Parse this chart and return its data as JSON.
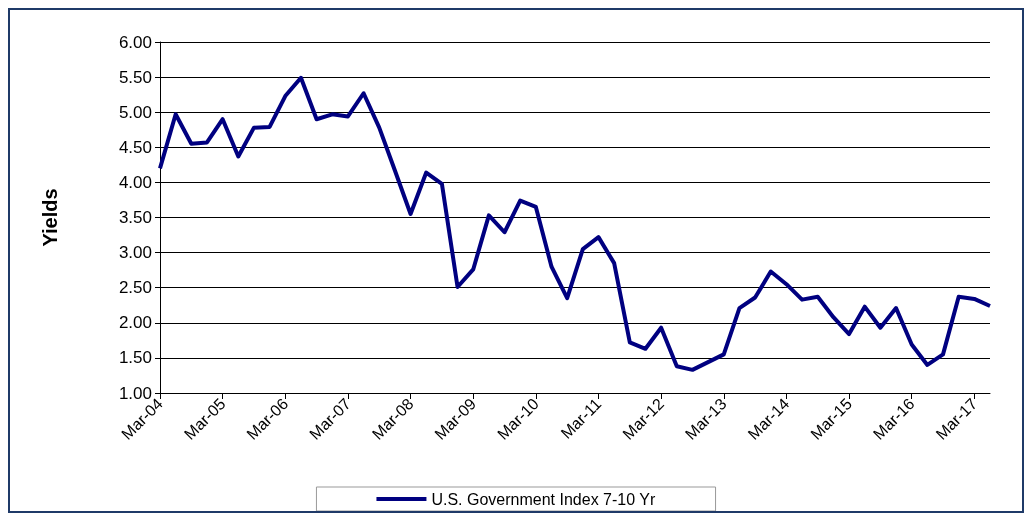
{
  "chart_data": {
    "type": "line",
    "ylabel": "Yields",
    "categories": [
      "Mar-04",
      null,
      null,
      null,
      "Mar-05",
      null,
      null,
      null,
      "Mar-06",
      null,
      null,
      null,
      "Mar-07",
      null,
      null,
      null,
      "Mar-08",
      null,
      null,
      null,
      "Mar-09",
      null,
      null,
      null,
      "Mar-10",
      null,
      null,
      null,
      "Mar-11",
      null,
      null,
      null,
      "Mar-12",
      null,
      null,
      null,
      "Mar-13",
      null,
      null,
      null,
      "Mar-14",
      null,
      null,
      null,
      "Mar-15",
      null,
      null,
      null,
      "Mar-16",
      null,
      null,
      null,
      "Mar-17",
      null
    ],
    "series": [
      {
        "name": "U.S. Government Index 7-10 Yr",
        "color": "#000080",
        "values": [
          4.2,
          4.97,
          4.55,
          4.57,
          4.9,
          4.37,
          4.78,
          4.79,
          5.23,
          5.49,
          4.9,
          4.97,
          4.94,
          5.27,
          4.78,
          4.17,
          3.55,
          4.14,
          3.98,
          2.51,
          2.76,
          3.53,
          3.29,
          3.74,
          3.65,
          2.8,
          2.35,
          3.05,
          3.22,
          2.85,
          1.72,
          1.63,
          1.93,
          1.38,
          1.33,
          1.44,
          1.55,
          2.21,
          2.36,
          2.73,
          2.55,
          2.33,
          2.37,
          2.08,
          1.84,
          2.23,
          1.93,
          2.21,
          1.69,
          1.4,
          1.55,
          2.37,
          2.34,
          2.24
        ]
      }
    ],
    "ylim": [
      1,
      6
    ],
    "yticks": [
      {
        "value": 1,
        "label": "1.00"
      },
      {
        "value": 1.5,
        "label": "1.50"
      },
      {
        "value": 2,
        "label": "2.00"
      },
      {
        "value": 2.5,
        "label": "2.50"
      },
      {
        "value": 3,
        "label": "3.00"
      },
      {
        "value": 3.5,
        "label": "3.50"
      },
      {
        "value": 4,
        "label": "4.00"
      },
      {
        "value": 4.5,
        "label": "4.50"
      },
      {
        "value": 5,
        "label": "5.00"
      },
      {
        "value": 5.5,
        "label": "5.50"
      },
      {
        "value": 6,
        "label": "6.00"
      }
    ],
    "grid": "y",
    "legend": "bottom",
    "marker": "none",
    "line_style": "solid"
  }
}
